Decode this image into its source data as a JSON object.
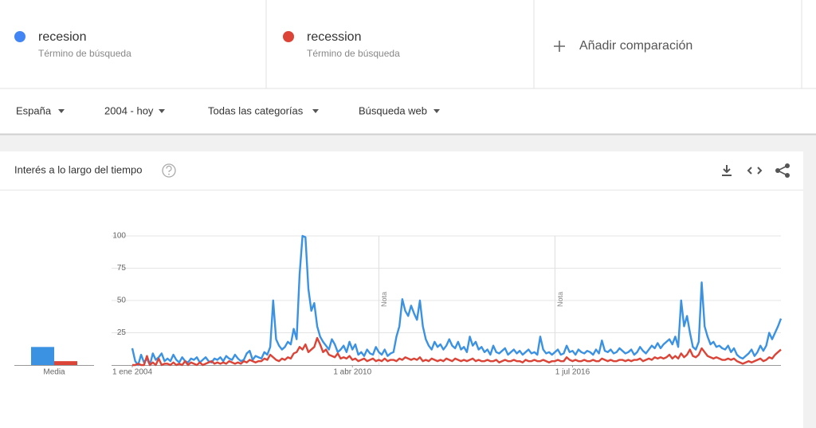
{
  "terms": [
    {
      "name": "recesion",
      "subtitle": "Término de búsqueda",
      "color": "#4285f4"
    },
    {
      "name": "recession",
      "subtitle": "Término de búsqueda",
      "color": "#db4437"
    }
  ],
  "add_comparison": "Añadir comparación",
  "filters": [
    "España",
    "2004 - hoy",
    "Todas las categorías",
    "Búsqueda web"
  ],
  "card_title": "Interés a lo largo del tiempo",
  "chart_data": [
    {
      "type": "line",
      "x": [
        "2004-01-01",
        "2004-02-01",
        "2004-03-01",
        "2004-04-01",
        "2004-05-01",
        "2004-06-01",
        "2004-07-01",
        "2004-08-01",
        "2004-09-01",
        "2004-10-01",
        "2004-11-01",
        "2004-12-01",
        "2005-01-01",
        "2005-02-01",
        "2005-03-01",
        "2005-04-01",
        "2005-05-01",
        "2005-06-01",
        "2005-07-01",
        "2005-08-01",
        "2005-09-01",
        "2005-10-01",
        "2005-11-01",
        "2005-12-01",
        "2006-01-01",
        "2006-02-01",
        "2006-03-01",
        "2006-04-01",
        "2006-05-01",
        "2006-06-01",
        "2006-07-01",
        "2006-08-01",
        "2006-09-01",
        "2006-10-01",
        "2006-11-01",
        "2006-12-01",
        "2007-01-01",
        "2007-02-01",
        "2007-03-01",
        "2007-04-01",
        "2007-05-01",
        "2007-06-01",
        "2007-07-01",
        "2007-08-01",
        "2007-09-01",
        "2007-10-01",
        "2007-11-01",
        "2007-12-01",
        "2008-01-01",
        "2008-02-01",
        "2008-03-01",
        "2008-04-01",
        "2008-05-01",
        "2008-06-01",
        "2008-07-01",
        "2008-08-01",
        "2008-09-01",
        "2008-10-01",
        "2008-11-01",
        "2008-12-01",
        "2009-01-01",
        "2009-02-01",
        "2009-03-01",
        "2009-04-01",
        "2009-05-01",
        "2009-06-01",
        "2009-07-01",
        "2009-08-01",
        "2009-09-01",
        "2009-10-01",
        "2009-11-01",
        "2009-12-01",
        "2010-01-01",
        "2010-02-01",
        "2010-03-01",
        "2010-04-01",
        "2010-05-01",
        "2010-06-01",
        "2010-07-01",
        "2010-08-01",
        "2010-09-01",
        "2010-10-01",
        "2010-11-01",
        "2010-12-01",
        "2011-01-01",
        "2011-02-01",
        "2011-03-01",
        "2011-04-01",
        "2011-05-01",
        "2011-06-01",
        "2011-07-01",
        "2011-08-01",
        "2011-09-01",
        "2011-10-01",
        "2011-11-01",
        "2011-12-01",
        "2012-01-01",
        "2012-02-01",
        "2012-03-01",
        "2012-04-01",
        "2012-05-01",
        "2012-06-01",
        "2012-07-01",
        "2012-08-01",
        "2012-09-01",
        "2012-10-01",
        "2012-11-01",
        "2012-12-01",
        "2013-01-01",
        "2013-02-01",
        "2013-03-01",
        "2013-04-01",
        "2013-05-01",
        "2013-06-01",
        "2013-07-01",
        "2013-08-01",
        "2013-09-01",
        "2013-10-01",
        "2013-11-01",
        "2013-12-01",
        "2014-01-01",
        "2014-02-01",
        "2014-03-01",
        "2014-04-01",
        "2014-05-01",
        "2014-06-01",
        "2014-07-01",
        "2014-08-01",
        "2014-09-01",
        "2014-10-01",
        "2014-11-01",
        "2014-12-01",
        "2015-01-01",
        "2015-02-01",
        "2015-03-01",
        "2015-04-01",
        "2015-05-01",
        "2015-06-01",
        "2015-07-01",
        "2015-08-01",
        "2015-09-01",
        "2015-10-01",
        "2015-11-01",
        "2015-12-01",
        "2016-01-01",
        "2016-02-01",
        "2016-03-01",
        "2016-04-01",
        "2016-05-01",
        "2016-06-01",
        "2016-07-01",
        "2016-08-01",
        "2016-09-01",
        "2016-10-01",
        "2016-11-01",
        "2016-12-01",
        "2017-01-01",
        "2017-02-01",
        "2017-03-01",
        "2017-04-01",
        "2017-05-01",
        "2017-06-01",
        "2017-07-01",
        "2017-08-01",
        "2017-09-01",
        "2017-10-01",
        "2017-11-01",
        "2017-12-01",
        "2018-01-01",
        "2018-02-01",
        "2018-03-01",
        "2018-04-01",
        "2018-05-01",
        "2018-06-01",
        "2018-07-01",
        "2018-08-01",
        "2018-09-01",
        "2018-10-01",
        "2018-11-01",
        "2018-12-01",
        "2019-01-01",
        "2019-02-01",
        "2019-03-01",
        "2019-04-01",
        "2019-05-01",
        "2019-06-01",
        "2019-07-01",
        "2019-08-01",
        "2019-09-01",
        "2019-10-01",
        "2019-11-01",
        "2019-12-01",
        "2020-01-01",
        "2020-02-01",
        "2020-03-01",
        "2020-04-01",
        "2020-05-01",
        "2020-06-01",
        "2020-07-01",
        "2020-08-01",
        "2020-09-01",
        "2020-10-01",
        "2020-11-01",
        "2020-12-01",
        "2021-01-01",
        "2021-02-01",
        "2021-03-01",
        "2021-04-01",
        "2021-05-01",
        "2021-06-01",
        "2021-07-01",
        "2021-08-01",
        "2021-09-01",
        "2021-10-01",
        "2021-11-01",
        "2021-12-01",
        "2022-01-01",
        "2022-02-01",
        "2022-03-01",
        "2022-04-01",
        "2022-05-01",
        "2022-06-01"
      ],
      "series": [
        {
          "name": "recesion",
          "color": "#3b92e3",
          "values": [
            13,
            3,
            0,
            8,
            2,
            5,
            0,
            9,
            4,
            6,
            9,
            3,
            5,
            3,
            8,
            4,
            2,
            6,
            3,
            2,
            5,
            4,
            6,
            2,
            4,
            6,
            3,
            2,
            5,
            4,
            6,
            3,
            7,
            5,
            4,
            8,
            5,
            3,
            4,
            9,
            11,
            4,
            7,
            6,
            5,
            10,
            8,
            14,
            50,
            20,
            15,
            12,
            14,
            18,
            16,
            28,
            20,
            70,
            100,
            99,
            59,
            42,
            48,
            30,
            22,
            18,
            15,
            12,
            20,
            16,
            10,
            12,
            15,
            10,
            18,
            12,
            16,
            8,
            10,
            7,
            12,
            9,
            8,
            14,
            10,
            8,
            12,
            7,
            9,
            10,
            22,
            30,
            51,
            42,
            38,
            46,
            40,
            35,
            50,
            30,
            20,
            15,
            12,
            18,
            14,
            16,
            12,
            15,
            20,
            15,
            13,
            18,
            12,
            14,
            10,
            22,
            15,
            18,
            12,
            14,
            10,
            12,
            8,
            15,
            10,
            9,
            11,
            13,
            8,
            10,
            12,
            9,
            11,
            8,
            10,
            12,
            9,
            10,
            8,
            22,
            12,
            9,
            10,
            8,
            10,
            12,
            8,
            9,
            15,
            10,
            11,
            8,
            12,
            10,
            9,
            11,
            10,
            8,
            12,
            9,
            19,
            11,
            10,
            12,
            9,
            10,
            13,
            11,
            9,
            10,
            12,
            8,
            10,
            14,
            11,
            9,
            12,
            15,
            13,
            17,
            13,
            16,
            18,
            20,
            16,
            22,
            14,
            50,
            30,
            38,
            25,
            14,
            12,
            18,
            64,
            30,
            22,
            16,
            18,
            14,
            15,
            13,
            12,
            15,
            10,
            13,
            8,
            6,
            5,
            7,
            9,
            12,
            7,
            10,
            15,
            11,
            15,
            25,
            20,
            25,
            30,
            36
          ]
        },
        {
          "name": "recession",
          "color": "#db4437",
          "values": [
            0,
            0,
            1,
            0,
            0,
            7,
            0,
            2,
            0,
            5,
            0,
            1,
            1,
            0,
            2,
            0,
            1,
            0,
            3,
            0,
            2,
            1,
            0,
            2,
            0,
            1,
            2,
            3,
            1,
            2,
            1,
            2,
            1,
            3,
            2,
            1,
            2,
            1,
            3,
            2,
            4,
            3,
            2,
            3,
            3,
            5,
            4,
            8,
            6,
            4,
            3,
            5,
            4,
            6,
            5,
            9,
            10,
            14,
            12,
            16,
            10,
            12,
            14,
            21,
            16,
            10,
            12,
            8,
            7,
            6,
            9,
            5,
            6,
            5,
            7,
            4,
            5,
            3,
            4,
            5,
            3,
            4,
            5,
            3,
            4,
            3,
            5,
            3,
            4,
            4,
            3,
            5,
            4,
            6,
            5,
            4,
            5,
            4,
            6,
            3,
            4,
            3,
            5,
            4,
            3,
            4,
            3,
            5,
            4,
            3,
            5,
            4,
            3,
            4,
            3,
            4,
            5,
            3,
            4,
            3,
            3,
            4,
            3,
            3,
            4,
            2,
            3,
            4,
            3,
            3,
            4,
            3,
            3,
            2,
            4,
            3,
            3,
            4,
            3,
            3,
            4,
            3,
            2,
            3,
            3,
            4,
            3,
            3,
            6,
            4,
            3,
            4,
            3,
            3,
            4,
            3,
            3,
            4,
            3,
            3,
            5,
            4,
            3,
            4,
            3,
            3,
            4,
            4,
            3,
            4,
            3,
            4,
            4,
            5,
            3,
            4,
            5,
            4,
            6,
            5,
            6,
            5,
            6,
            8,
            5,
            7,
            5,
            9,
            6,
            8,
            12,
            7,
            6,
            8,
            13,
            10,
            7,
            6,
            5,
            6,
            5,
            4,
            4,
            5,
            4,
            5,
            3,
            2,
            1,
            2,
            3,
            2,
            3,
            4,
            5,
            3,
            4,
            6,
            5,
            8,
            10,
            12
          ]
        }
      ],
      "xlim": [
        "2004-01-01",
        "2022-06-01"
      ],
      "xticks": [
        {
          "value": "2004-01-01",
          "label": "1 ene 2004"
        },
        {
          "value": "2010-04-01",
          "label": "1 abr 2010"
        },
        {
          "value": "2016-07-01",
          "label": "1 jul 2016"
        }
      ],
      "ylim": [
        0,
        100
      ],
      "yticks": [
        25,
        50,
        75,
        100
      ],
      "grid": true,
      "annotations": [
        {
          "x": "2011-01-01",
          "label": "Nota"
        },
        {
          "x": "2016-01-01",
          "label": "Nota"
        }
      ]
    },
    {
      "type": "bar",
      "categories": [
        "Media"
      ],
      "series": [
        {
          "name": "recesion",
          "color": "#3b92e3",
          "values": [
            14
          ]
        },
        {
          "name": "recession",
          "color": "#db4437",
          "values": [
            3
          ]
        }
      ],
      "ylim": [
        0,
        100
      ]
    }
  ]
}
